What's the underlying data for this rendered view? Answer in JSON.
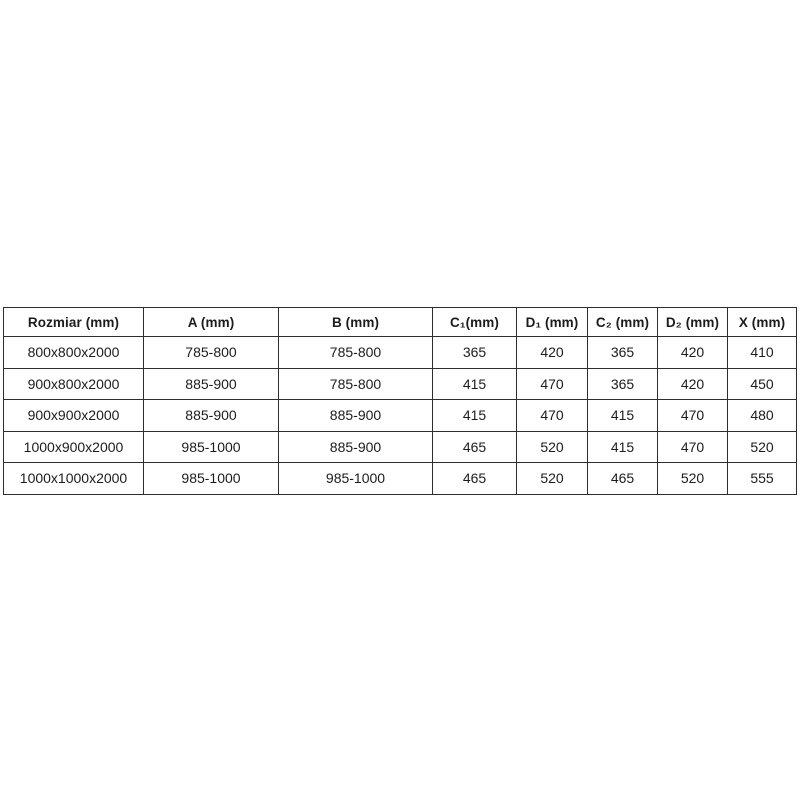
{
  "table": {
    "columns": [
      {
        "label": "Rozmiar (mm)"
      },
      {
        "label": "A (mm)"
      },
      {
        "label": "B (mm)"
      },
      {
        "label": "C₁(mm)"
      },
      {
        "label": "D₁ (mm)"
      },
      {
        "label": "C₂ (mm)"
      },
      {
        "label": "D₂ (mm)"
      },
      {
        "label": "X (mm)"
      }
    ],
    "rows": [
      [
        "800x800x2000",
        "785-800",
        "785-800",
        "365",
        "420",
        "365",
        "420",
        "410"
      ],
      [
        "900x800x2000",
        "885-900",
        "785-800",
        "415",
        "470",
        "365",
        "420",
        "450"
      ],
      [
        "900x900x2000",
        "885-900",
        "885-900",
        "415",
        "470",
        "415",
        "470",
        "480"
      ],
      [
        "1000x900x2000",
        "985-1000",
        "885-900",
        "465",
        "520",
        "415",
        "470",
        "520"
      ],
      [
        "1000x1000x2000",
        "985-1000",
        "985-1000",
        "465",
        "520",
        "465",
        "520",
        "555"
      ]
    ]
  }
}
